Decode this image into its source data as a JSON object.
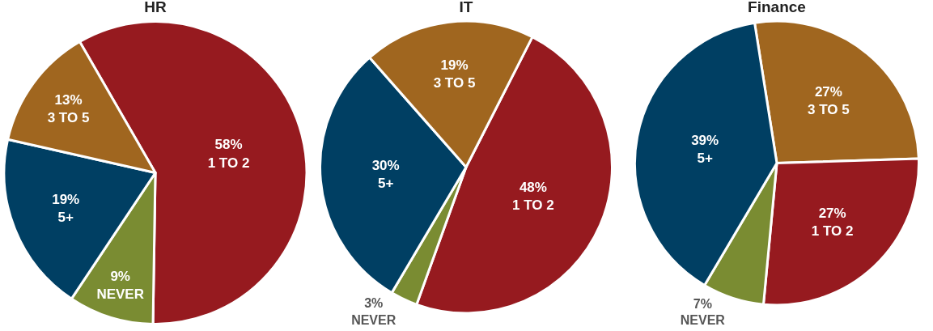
{
  "chart_data": [
    {
      "type": "pie",
      "title": "HR",
      "categories": [
        "1 TO 2",
        "NEVER",
        "5+",
        "3 TO 5"
      ],
      "values": [
        58,
        9,
        19,
        13
      ],
      "value_labels": [
        "58%",
        "9%",
        "19%",
        "13%"
      ],
      "colors": [
        "#961a1f",
        "#7a8c32",
        "#003f63",
        "#a0661f"
      ],
      "legend": false
    },
    {
      "type": "pie",
      "title": "IT",
      "categories": [
        "1 TO 2",
        "NEVER",
        "5+",
        "3 TO 5"
      ],
      "values": [
        48,
        3,
        30,
        19
      ],
      "value_labels": [
        "48%",
        "3%",
        "30%",
        "19%"
      ],
      "colors": [
        "#961a1f",
        "#7a8c32",
        "#003f63",
        "#a0661f"
      ],
      "legend": false
    },
    {
      "type": "pie",
      "title": "Finance",
      "categories": [
        "3 TO 5",
        "1 TO 2",
        "NEVER",
        "5+"
      ],
      "values": [
        27,
        27,
        7,
        39
      ],
      "value_labels": [
        "27%",
        "27%",
        "7%",
        "39%"
      ],
      "colors": [
        "#a0661f",
        "#961a1f",
        "#7a8c32",
        "#003f63"
      ],
      "legend": false
    }
  ]
}
